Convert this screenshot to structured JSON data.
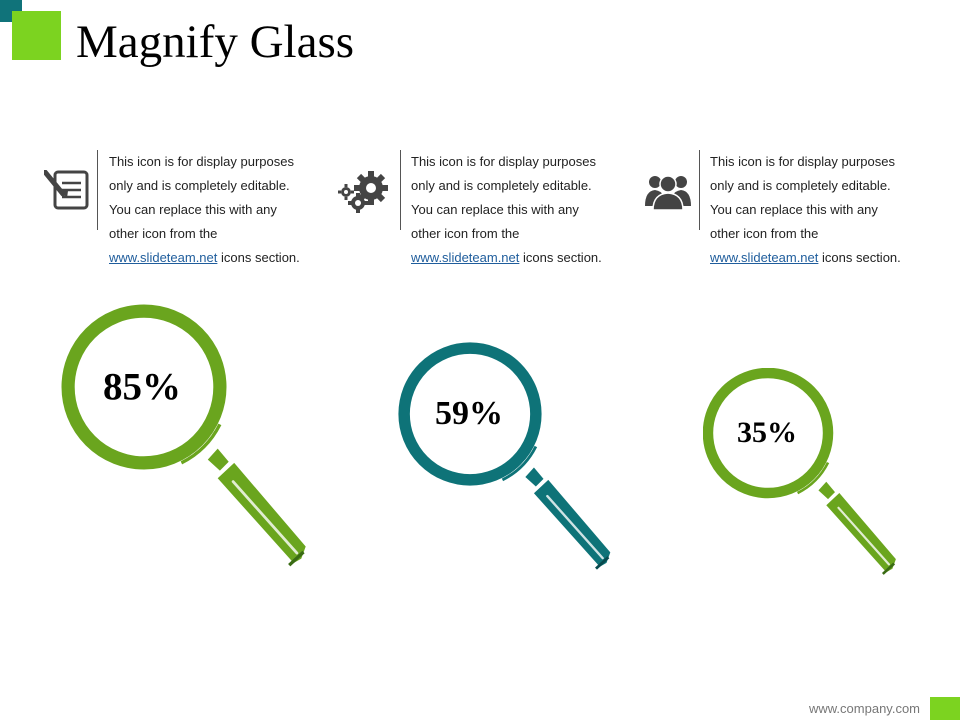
{
  "slide": {
    "title": "Magnify Glass",
    "colors": {
      "accent_green": "#7cd320",
      "accent_teal": "#10737a",
      "glass_green": "#6aa51e",
      "glass_teal": "#0e7378",
      "icon_gray": "#444444"
    }
  },
  "info_blocks": [
    {
      "icon": "notepad-pencil-icon",
      "lines": [
        "This icon is for display purposes",
        "only and is completely editable.",
        "You can replace this with any",
        "other icon from the"
      ],
      "link": "www.slideteam.net",
      "link_suffix": " icons section."
    },
    {
      "icon": "gears-icon",
      "lines": [
        "This icon is for display purposes",
        "only and is completely editable.",
        "You can replace this with any",
        "other icon from the"
      ],
      "link": "www.slideteam.net",
      "link_suffix": " icons section."
    },
    {
      "icon": "users-group-icon",
      "lines": [
        "This icon is for display purposes",
        "only and is completely editable.",
        "You can replace this with any",
        "other icon from the"
      ],
      "link": "www.slideteam.net",
      "link_suffix": " icons section."
    }
  ],
  "magnifiers": [
    {
      "value": "85%",
      "color": "#6aa51e"
    },
    {
      "value": "59%",
      "color": "#0e7378"
    },
    {
      "value": "35%",
      "color": "#6aa51e"
    }
  ],
  "footer": {
    "url": "www.company.com"
  }
}
